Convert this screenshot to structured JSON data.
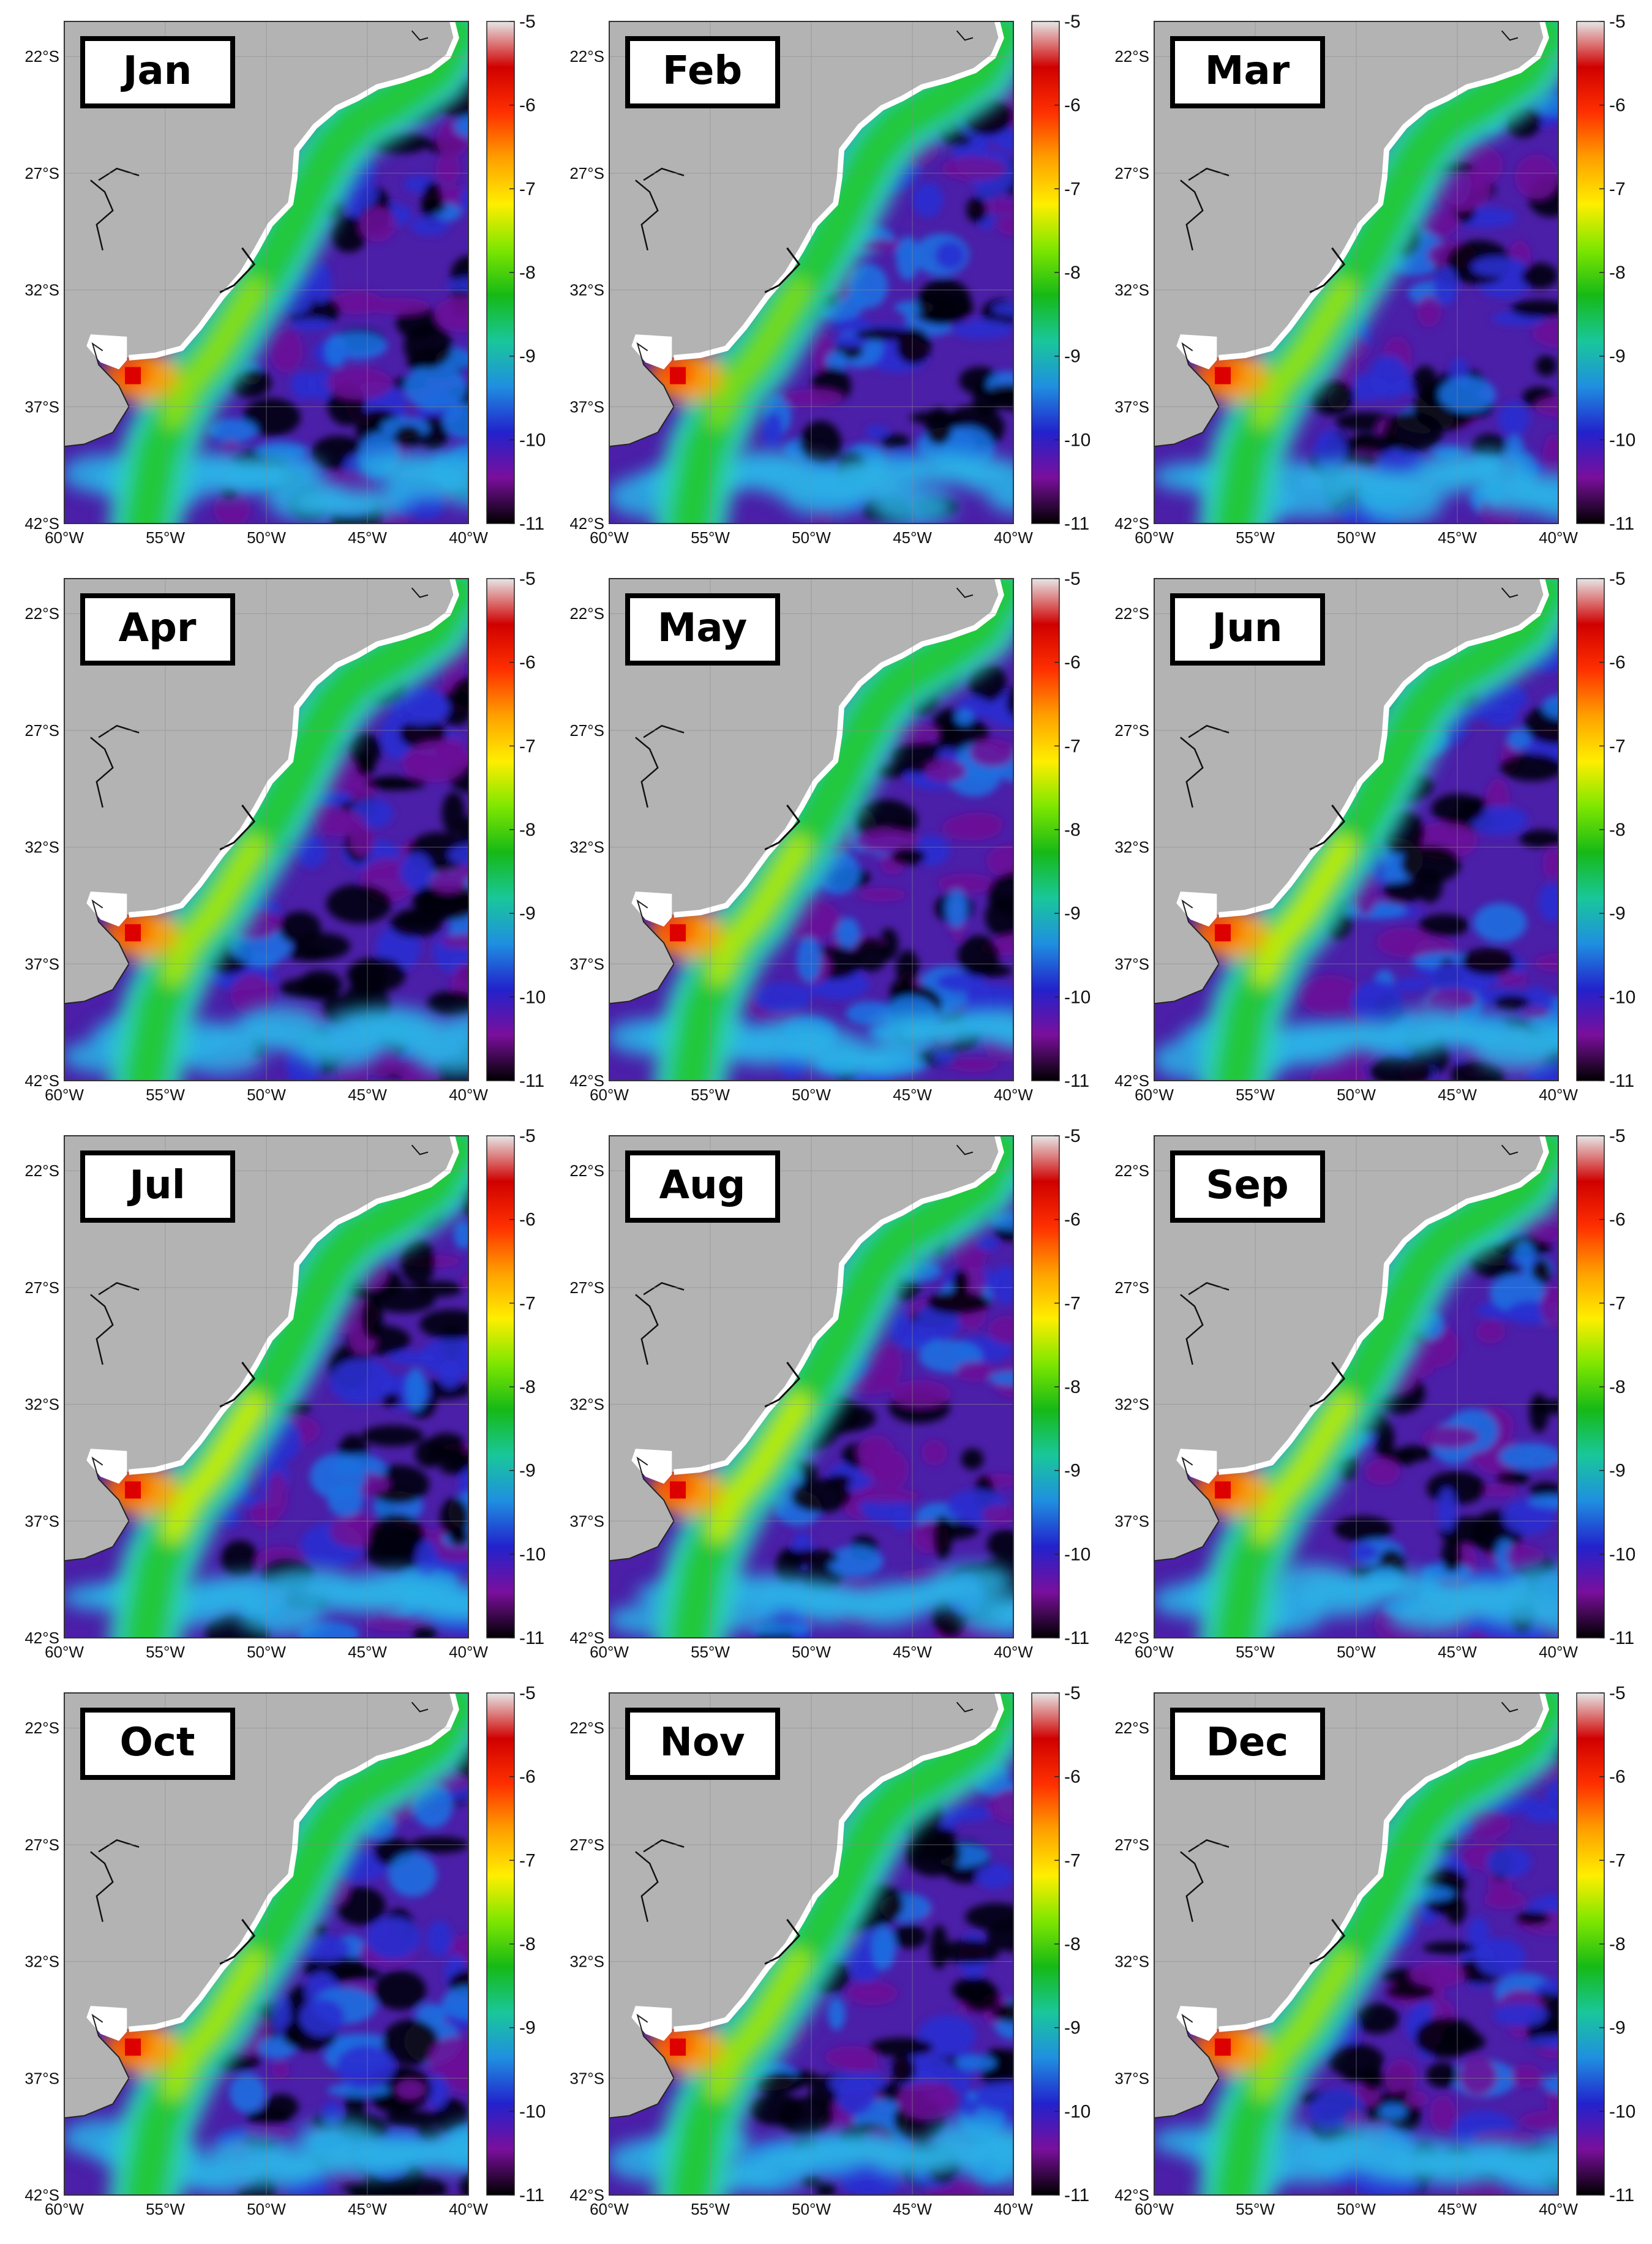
{
  "figure": {
    "lat_ticks": [
      "22°S",
      "27°S",
      "32°S",
      "37°S",
      "42°S"
    ],
    "lon_ticks": [
      "60°W",
      "55°W",
      "50°W",
      "45°W",
      "40°W"
    ],
    "colorbar_ticks": [
      "-5",
      "-6",
      "-7",
      "-8",
      "-9",
      "-10",
      "-11"
    ],
    "colorbar_range": [
      -11,
      -5
    ],
    "colormap": [
      "#000000",
      "#7a0f9c",
      "#2222cc",
      "#1f8fe0",
      "#19c79a",
      "#16b916",
      "#7ee600",
      "#ffee00",
      "#ffa000",
      "#ff3000",
      "#d00000",
      "#e6e6e6"
    ],
    "colors": {
      "land": "#b3b3b3",
      "coast_fill": "#ffffff",
      "grid": "#8c8c8c",
      "frame": "#333333",
      "label_box_border": "#000000"
    }
  },
  "panels": [
    {
      "month": "Jan"
    },
    {
      "month": "Feb"
    },
    {
      "month": "Mar"
    },
    {
      "month": "Apr"
    },
    {
      "month": "May"
    },
    {
      "month": "Jun"
    },
    {
      "month": "Jul"
    },
    {
      "month": "Aug"
    },
    {
      "month": "Sep"
    },
    {
      "month": "Oct"
    },
    {
      "month": "Nov"
    },
    {
      "month": "Dec"
    }
  ]
}
